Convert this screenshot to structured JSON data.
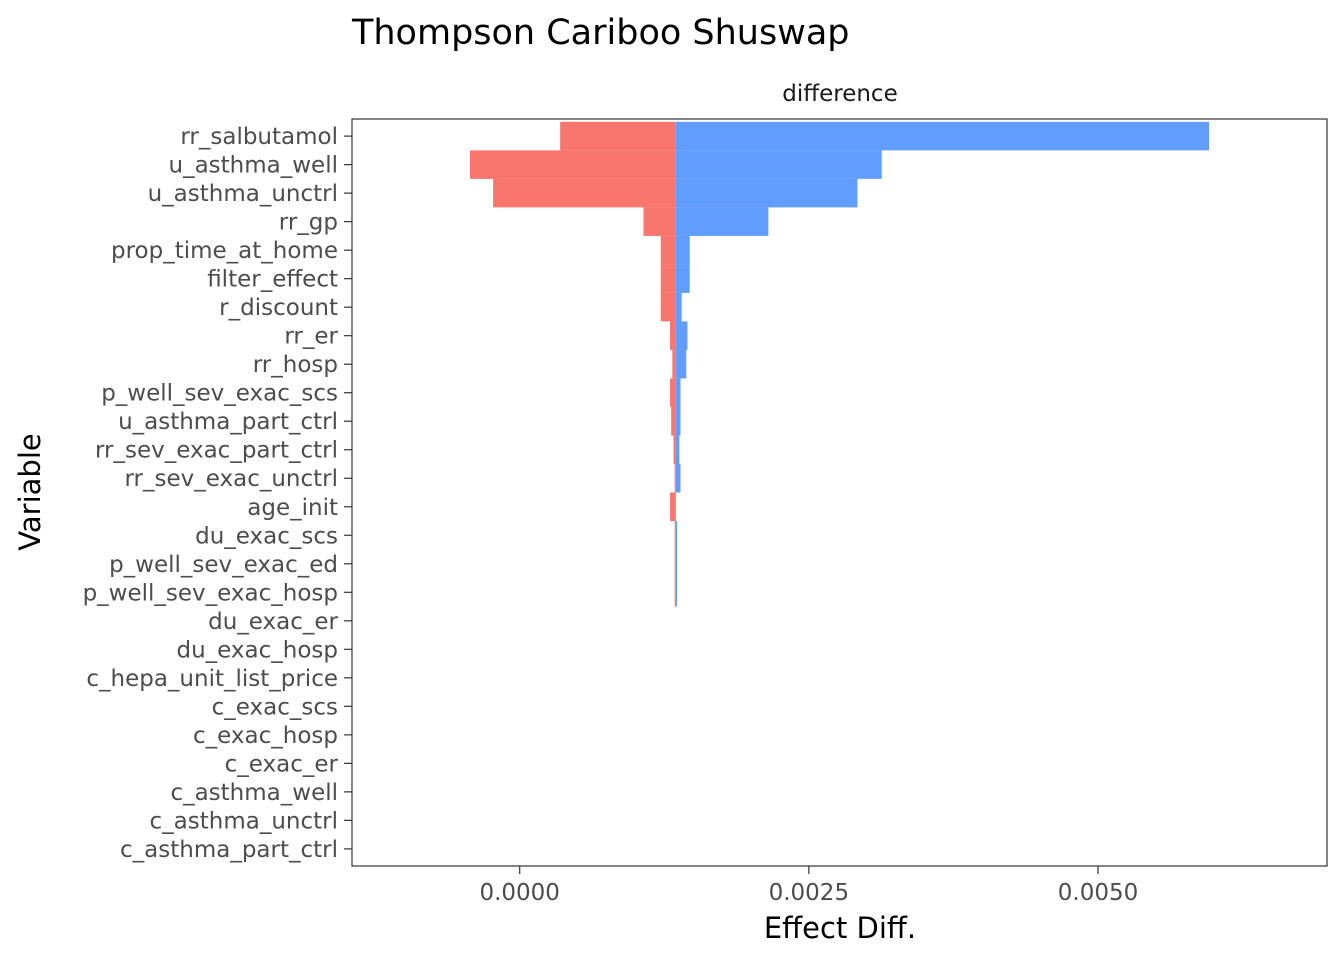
{
  "chart_data": {
    "type": "bar",
    "orientation": "horizontal",
    "chart_style": "tornado",
    "title": "Thompson Cariboo Shuswap",
    "facet_label": "difference",
    "xlabel": "Effect Diff.",
    "ylabel": "Variable",
    "xlim": [
      -0.00145,
      0.00698
    ],
    "xticks": [
      0.0,
      0.0025,
      0.005
    ],
    "xtick_labels": [
      "0.0000",
      "0.0025",
      "0.0050"
    ],
    "grid": false,
    "legend": "none",
    "baseline": 0.00135,
    "colors": {
      "low": "#F8766D",
      "high": "#619CFF",
      "frame": "#333333"
    },
    "categories": [
      "rr_salbutamol",
      "u_asthma_well",
      "u_asthma_unctrl",
      "rr_gp",
      "prop_time_at_home",
      "filter_effect",
      "r_discount",
      "rr_er",
      "rr_hosp",
      "p_well_sev_exac_scs",
      "u_asthma_part_ctrl",
      "rr_sev_exac_part_ctrl",
      "rr_sev_exac_unctrl",
      "age_init",
      "du_exac_scs",
      "p_well_sev_exac_ed",
      "p_well_sev_exac_hosp",
      "du_exac_er",
      "du_exac_hosp",
      "c_hepa_unit_list_price",
      "c_exac_scs",
      "c_exac_hosp",
      "c_exac_er",
      "c_asthma_well",
      "c_asthma_unctrl",
      "c_asthma_part_ctrl"
    ],
    "series": [
      {
        "values": [
          0.00035,
          -0.00043,
          -0.00023,
          0.00107,
          0.00122,
          0.00122,
          0.00122,
          0.0013,
          0.00132,
          0.0013,
          0.00131,
          0.00133,
          0.00134,
          0.0013,
          0.00134,
          0.00134,
          0.00134,
          0.00135,
          0.00135,
          0.00135,
          0.00135,
          0.00135,
          0.00135,
          0.00135,
          0.00135,
          0.00135
        ]
      },
      {
        "values": [
          0.00596,
          0.00313,
          0.00292,
          0.00215,
          0.00147,
          0.00147,
          0.0014,
          0.00145,
          0.00144,
          0.00139,
          0.00139,
          0.00138,
          0.00139,
          0.00135,
          0.00136,
          0.00136,
          0.00136,
          0.00135,
          0.00135,
          0.00135,
          0.00135,
          0.00135,
          0.00135,
          0.00135,
          0.00135,
          0.00135
        ]
      }
    ]
  }
}
